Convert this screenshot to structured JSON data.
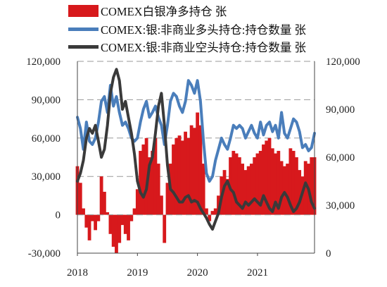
{
  "legend": [
    {
      "label": "COMEX白银净多持仓 张",
      "color": "#d7191c",
      "kind": "bar"
    },
    {
      "label": "COMEX:银:非商业多头持仓:持仓数量 张",
      "color": "#4a7ebb",
      "kind": "line"
    },
    {
      "label": "COMEX:银:非商业空头持仓:持仓数量 张",
      "color": "#3a3a3a",
      "kind": "line"
    }
  ],
  "chart_data": {
    "type": "line",
    "x_ticks": [
      "2018",
      "2019",
      "2020",
      "2021"
    ],
    "x_range": [
      2018.0,
      2021.95
    ],
    "left_axis": {
      "ticks": [
        "120,000",
        "90,000",
        "60,000",
        "30,000",
        "0",
        "-30,000"
      ],
      "range": [
        -30000,
        120000
      ]
    },
    "right_axis": {
      "ticks": [
        "120,000",
        "90,000",
        "60,000",
        "30,000",
        "0"
      ],
      "range": [
        0,
        120000
      ]
    },
    "grid": "horizontal dashed",
    "series": [
      {
        "name": "COMEX白银净多持仓 张",
        "axis": "left",
        "type": "bar",
        "x": [
          2018.0,
          2018.05,
          2018.1,
          2018.15,
          2018.2,
          2018.25,
          2018.3,
          2018.35,
          2018.4,
          2018.45,
          2018.5,
          2018.55,
          2018.6,
          2018.65,
          2018.7,
          2018.75,
          2018.8,
          2018.85,
          2018.9,
          2018.95,
          2019.0,
          2019.05,
          2019.1,
          2019.15,
          2019.2,
          2019.25,
          2019.3,
          2019.35,
          2019.4,
          2019.45,
          2019.5,
          2019.55,
          2019.6,
          2019.65,
          2019.7,
          2019.75,
          2019.8,
          2019.85,
          2019.9,
          2019.95,
          2020.0,
          2020.05,
          2020.1,
          2020.15,
          2020.2,
          2020.25,
          2020.3,
          2020.35,
          2020.4,
          2020.45,
          2020.5,
          2020.55,
          2020.6,
          2020.65,
          2020.7,
          2020.75,
          2020.8,
          2020.85,
          2020.9,
          2020.95,
          2021.0,
          2021.05,
          2021.1,
          2021.15,
          2021.2,
          2021.25,
          2021.3,
          2021.35,
          2021.4,
          2021.45,
          2021.5,
          2021.55,
          2021.6,
          2021.65,
          2021.7,
          2021.75,
          2021.8,
          2021.85,
          2021.9,
          2021.95
        ],
        "values": [
          38000,
          25000,
          5000,
          -10000,
          -20000,
          -5000,
          -12000,
          -5000,
          30000,
          18000,
          2000,
          -15000,
          -25000,
          -30000,
          -22000,
          -8000,
          -15000,
          -20000,
          -5000,
          5000,
          20000,
          50000,
          55000,
          60000,
          45000,
          50000,
          60000,
          40000,
          15000,
          -22000,
          25000,
          40000,
          55000,
          60000,
          62000,
          58000,
          65000,
          60000,
          70000,
          68000,
          80000,
          70000,
          40000,
          5000,
          -5000,
          3000,
          5000,
          15000,
          30000,
          35000,
          28000,
          45000,
          50000,
          48000,
          45000,
          40000,
          35000,
          38000,
          40000,
          45000,
          48000,
          50000,
          55000,
          58000,
          60000,
          52000,
          48000,
          50000,
          42000,
          38000,
          40000,
          52000,
          50000,
          45000,
          35000,
          30000,
          42000,
          40000,
          45000,
          45000
        ]
      },
      {
        "name": "COMEX:银:非商业多头持仓:持仓数量 张",
        "axis": "right",
        "type": "line",
        "x": [
          2018.0,
          2018.05,
          2018.1,
          2018.15,
          2018.2,
          2018.25,
          2018.3,
          2018.35,
          2018.4,
          2018.45,
          2018.5,
          2018.55,
          2018.6,
          2018.65,
          2018.7,
          2018.75,
          2018.8,
          2018.85,
          2018.9,
          2018.95,
          2019.0,
          2019.05,
          2019.1,
          2019.15,
          2019.2,
          2019.25,
          2019.3,
          2019.35,
          2019.4,
          2019.45,
          2019.5,
          2019.55,
          2019.6,
          2019.65,
          2019.7,
          2019.75,
          2019.8,
          2019.85,
          2019.9,
          2019.95,
          2020.0,
          2020.05,
          2020.1,
          2020.15,
          2020.2,
          2020.25,
          2020.3,
          2020.35,
          2020.4,
          2020.45,
          2020.5,
          2020.55,
          2020.6,
          2020.65,
          2020.7,
          2020.75,
          2020.8,
          2020.85,
          2020.9,
          2020.95,
          2021.0,
          2021.05,
          2021.1,
          2021.15,
          2021.2,
          2021.25,
          2021.3,
          2021.35,
          2021.4,
          2021.45,
          2021.5,
          2021.55,
          2021.6,
          2021.65,
          2021.7,
          2021.75,
          2021.8,
          2021.85,
          2021.9,
          2021.95
        ],
        "values": [
          85000,
          78000,
          65000,
          82000,
          70000,
          68000,
          72000,
          82000,
          95000,
          98000,
          88000,
          105000,
          92000,
          98000,
          88000,
          80000,
          82000,
          78000,
          72000,
          70000,
          72000,
          82000,
          90000,
          95000,
          85000,
          88000,
          92000,
          85000,
          80000,
          68000,
          80000,
          95000,
          100000,
          98000,
          92000,
          88000,
          95000,
          108000,
          105000,
          100000,
          108000,
          95000,
          70000,
          50000,
          45000,
          48000,
          58000,
          65000,
          72000,
          68000,
          65000,
          72000,
          80000,
          78000,
          80000,
          78000,
          72000,
          76000,
          80000,
          75000,
          72000,
          82000,
          74000,
          80000,
          82000,
          76000,
          80000,
          72000,
          88000,
          75000,
          72000,
          78000,
          84000,
          82000,
          76000,
          66000,
          68000,
          64000,
          66000,
          75000
        ]
      },
      {
        "name": "COMEX:银:非商业空头持仓:持仓数量 张",
        "axis": "right",
        "type": "line",
        "x": [
          2018.0,
          2018.05,
          2018.1,
          2018.15,
          2018.2,
          2018.25,
          2018.3,
          2018.35,
          2018.4,
          2018.45,
          2018.5,
          2018.55,
          2018.6,
          2018.65,
          2018.7,
          2018.75,
          2018.8,
          2018.85,
          2018.9,
          2018.95,
          2019.0,
          2019.05,
          2019.1,
          2019.15,
          2019.2,
          2019.25,
          2019.3,
          2019.35,
          2019.4,
          2019.45,
          2019.5,
          2019.55,
          2019.6,
          2019.65,
          2019.7,
          2019.75,
          2019.8,
          2019.85,
          2019.9,
          2019.95,
          2020.0,
          2020.05,
          2020.1,
          2020.15,
          2020.2,
          2020.25,
          2020.3,
          2020.35,
          2020.4,
          2020.45,
          2020.5,
          2020.55,
          2020.6,
          2020.65,
          2020.7,
          2020.75,
          2020.8,
          2020.85,
          2020.9,
          2020.95,
          2021.0,
          2021.05,
          2021.1,
          2021.15,
          2021.2,
          2021.25,
          2021.3,
          2021.35,
          2021.4,
          2021.45,
          2021.5,
          2021.55,
          2021.6,
          2021.65,
          2021.7,
          2021.75,
          2021.8,
          2021.85,
          2021.9,
          2021.95
        ],
        "values": [
          45000,
          50000,
          58000,
          72000,
          78000,
          75000,
          80000,
          70000,
          60000,
          65000,
          80000,
          100000,
          110000,
          115000,
          108000,
          90000,
          95000,
          85000,
          75000,
          62000,
          45000,
          38000,
          35000,
          40000,
          55000,
          60000,
          75000,
          92000,
          100000,
          80000,
          55000,
          40000,
          38000,
          35000,
          32000,
          32000,
          35000,
          36000,
          32000,
          33000,
          32000,
          28000,
          25000,
          22000,
          18000,
          15000,
          20000,
          25000,
          35000,
          42000,
          45000,
          40000,
          38000,
          32000,
          30000,
          28000,
          32000,
          30000,
          32000,
          34000,
          32000,
          30000,
          36000,
          32000,
          28000,
          26000,
          32000,
          28000,
          35000,
          38000,
          35000,
          30000,
          26000,
          28000,
          32000,
          38000,
          44000,
          40000,
          32000,
          28000
        ]
      }
    ]
  }
}
